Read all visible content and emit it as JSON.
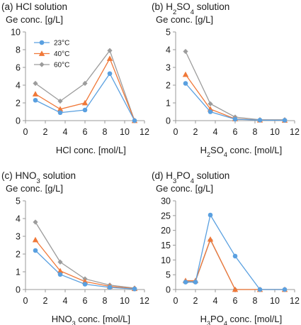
{
  "colors": {
    "23C": "#5aa0e0",
    "40C": "#f07838",
    "60C": "#9c9c9c",
    "axis": "#999999",
    "text": "#1a1a1a"
  },
  "legend": {
    "placement": "top-left inside panel (a)",
    "entries": [
      "23°C",
      "40°C",
      "60°C"
    ]
  },
  "chart_data": [
    {
      "type": "line",
      "panel": "(a)",
      "title": "(a) HCl solution",
      "title_parts": [
        {
          "t": "(a) HCl solution"
        }
      ],
      "ylabel": "Ge conc. [g/L]",
      "xlabel": "HCl conc. [mol/L]",
      "xlabel_parts": [
        {
          "t": "HCl conc. [mol/L]"
        }
      ],
      "xlim": [
        0,
        12
      ],
      "xticks": [
        0,
        2,
        4,
        6,
        8,
        10,
        12
      ],
      "ylim": [
        0,
        10
      ],
      "yticks": [
        0,
        2,
        4,
        6,
        8,
        10
      ],
      "grid": false,
      "series": [
        {
          "name": "23°C",
          "color": "#5aa0e0",
          "marker": "circle",
          "x": [
            1,
            3.5,
            6,
            8.5,
            11
          ],
          "y": [
            2.3,
            0.9,
            1.2,
            5.3,
            0
          ]
        },
        {
          "name": "40°C",
          "color": "#f07838",
          "marker": "triangle",
          "x": [
            1,
            3.5,
            6,
            8.5,
            11
          ],
          "y": [
            3.0,
            1.3,
            2.0,
            7.0,
            0
          ]
        },
        {
          "name": "60°C",
          "color": "#9c9c9c",
          "marker": "diamond",
          "x": [
            1,
            3.5,
            6,
            8.5,
            11
          ],
          "y": [
            4.2,
            2.2,
            4.2,
            7.9,
            0
          ]
        }
      ]
    },
    {
      "type": "line",
      "panel": "(b)",
      "title": "(b) H2SO4 solution",
      "title_parts": [
        {
          "t": "(b) H"
        },
        {
          "t": "2",
          "sub": true
        },
        {
          "t": "SO"
        },
        {
          "t": "4",
          "sub": true
        },
        {
          "t": " solution"
        }
      ],
      "ylabel": "Ge conc. [g/L]",
      "xlabel": "H2SO4 conc. [mol/L]",
      "xlabel_parts": [
        {
          "t": "H"
        },
        {
          "t": "2",
          "sub": true
        },
        {
          "t": "SO"
        },
        {
          "t": "4",
          "sub": true
        },
        {
          "t": " conc. [mol/L]"
        }
      ],
      "xlim": [
        0,
        12
      ],
      "xticks": [
        0,
        2,
        4,
        6,
        8,
        10,
        12
      ],
      "ylim": [
        0,
        5
      ],
      "yticks": [
        0,
        1,
        2,
        3,
        4,
        5
      ],
      "grid": false,
      "series": [
        {
          "name": "23°C",
          "color": "#5aa0e0",
          "marker": "circle",
          "x": [
            1,
            3.5,
            6,
            8.5,
            11
          ],
          "y": [
            2.1,
            0.5,
            0.08,
            0.03,
            0.02
          ]
        },
        {
          "name": "40°C",
          "color": "#f07838",
          "marker": "triangle",
          "x": [
            1,
            3.5,
            6,
            8.5,
            11
          ],
          "y": [
            2.6,
            0.65,
            0.1,
            0.03,
            0.02
          ]
        },
        {
          "name": "60°C",
          "color": "#9c9c9c",
          "marker": "diamond",
          "x": [
            1,
            3.5,
            6,
            8.5,
            11
          ],
          "y": [
            3.9,
            0.95,
            0.2,
            0.05,
            0.05
          ]
        }
      ]
    },
    {
      "type": "line",
      "panel": "(c)",
      "title": "(c) HNO3 solution",
      "title_parts": [
        {
          "t": "(c) HNO"
        },
        {
          "t": "3",
          "sub": true
        },
        {
          "t": " solution"
        }
      ],
      "ylabel": "Ge conc. [g/L]",
      "xlabel": "HNO3 conc. [mol/L]",
      "xlabel_parts": [
        {
          "t": "HNO"
        },
        {
          "t": "3",
          "sub": true
        },
        {
          "t": " conc. [mol/L]"
        }
      ],
      "xlim": [
        0,
        12
      ],
      "xticks": [
        0,
        2,
        4,
        6,
        8,
        10,
        12
      ],
      "ylim": [
        0,
        5
      ],
      "yticks": [
        0,
        1,
        2,
        3,
        4,
        5
      ],
      "grid": false,
      "series": [
        {
          "name": "23°C",
          "color": "#5aa0e0",
          "marker": "circle",
          "x": [
            1,
            3.5,
            6,
            8.5,
            11
          ],
          "y": [
            2.2,
            0.85,
            0.3,
            0.12,
            0.03
          ]
        },
        {
          "name": "40°C",
          "color": "#f07838",
          "marker": "triangle",
          "x": [
            1,
            3.5,
            6,
            8.5,
            11
          ],
          "y": [
            2.8,
            1.05,
            0.45,
            0.18,
            0.05
          ]
        },
        {
          "name": "60°C",
          "color": "#9c9c9c",
          "marker": "diamond",
          "x": [
            1,
            3.5,
            6,
            8.5,
            11
          ],
          "y": [
            3.8,
            1.55,
            0.6,
            0.25,
            0.08
          ]
        }
      ]
    },
    {
      "type": "line",
      "panel": "(d)",
      "title": "(d) H3PO4 solution",
      "title_parts": [
        {
          "t": "(d) H"
        },
        {
          "t": "3",
          "sub": true
        },
        {
          "t": "PO"
        },
        {
          "t": "4",
          "sub": true
        },
        {
          "t": " solution"
        }
      ],
      "ylabel": "Ge conc. [g/L]",
      "xlabel": "H3PO4 conc. [mol/L]",
      "xlabel_parts": [
        {
          "t": "H"
        },
        {
          "t": "3",
          "sub": true
        },
        {
          "t": "PO"
        },
        {
          "t": "4",
          "sub": true
        },
        {
          "t": " conc. [mol/L]"
        }
      ],
      "xlim": [
        0,
        12
      ],
      "xticks": [
        0,
        2,
        4,
        6,
        8,
        10,
        12
      ],
      "ylim": [
        0,
        30
      ],
      "yticks": [
        0,
        5,
        10,
        15,
        20,
        25,
        30
      ],
      "grid": false,
      "series": [
        {
          "name": "23°C",
          "color": "#5aa0e0",
          "marker": "circle",
          "x": [
            1,
            2,
            3.5,
            6,
            8.5,
            11
          ],
          "y": [
            2.5,
            2.5,
            25.2,
            11.3,
            0,
            0
          ]
        },
        {
          "name": "40°C",
          "color": "#f07838",
          "marker": "triangle",
          "x": [
            1,
            2,
            3.5,
            6,
            8.5,
            11
          ],
          "y": [
            3.0,
            3.0,
            17.0,
            0,
            0,
            0
          ]
        },
        {
          "name": "60°C",
          "color": "#9c9c9c",
          "marker": "diamond",
          "x": [
            1,
            2,
            3.5,
            6,
            8.5,
            11
          ],
          "y": [
            2.7,
            2.8,
            16.8,
            0,
            0,
            0
          ]
        }
      ]
    }
  ]
}
